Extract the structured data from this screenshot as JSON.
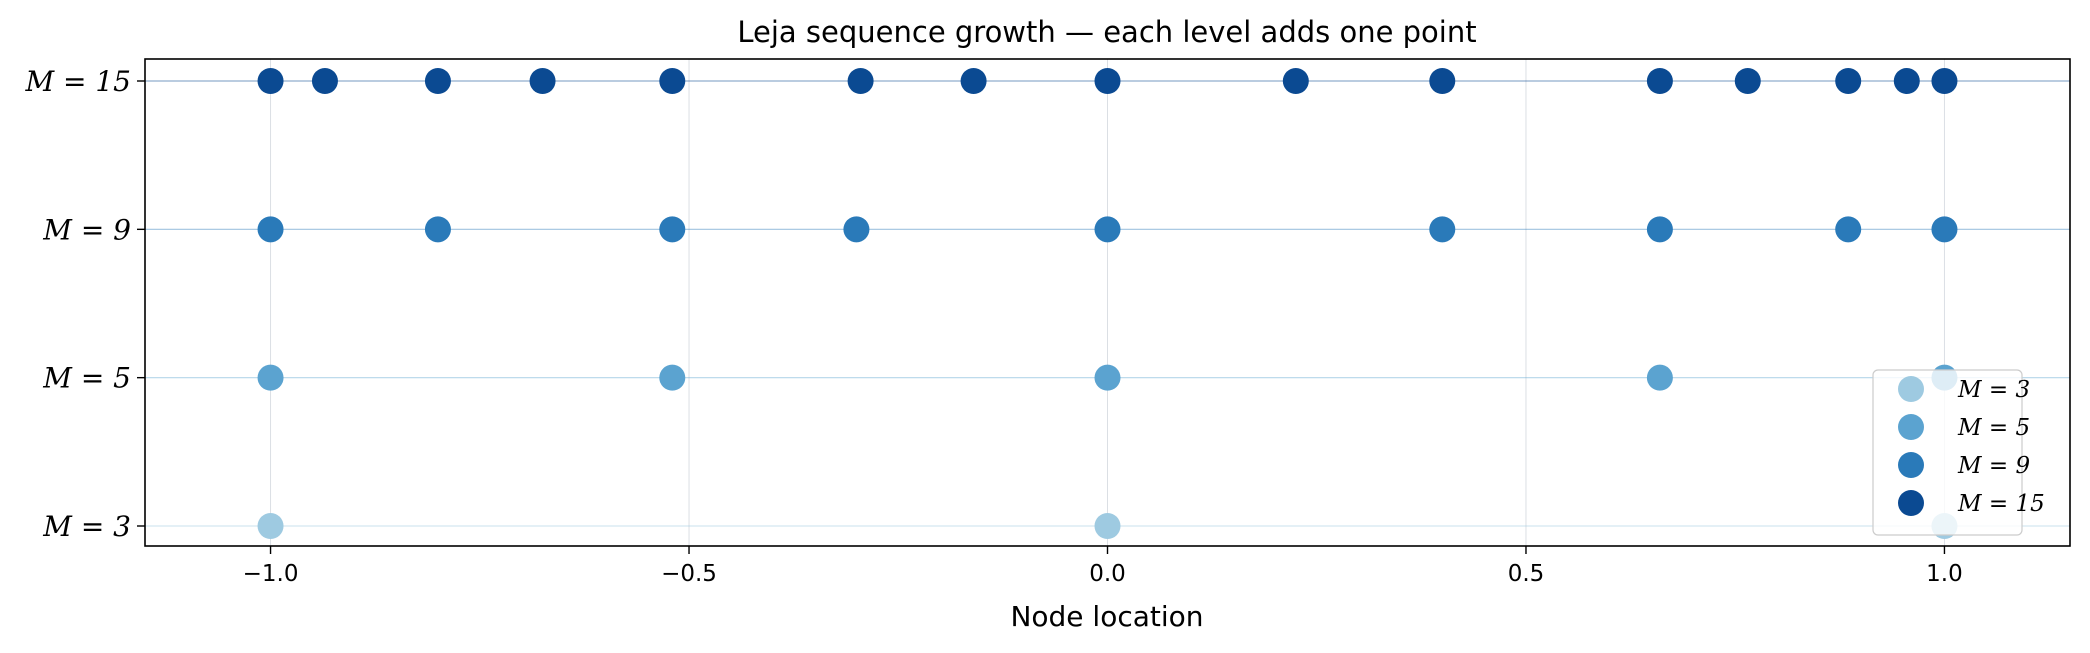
{
  "chart_data": {
    "type": "scatter",
    "title": "Leja sequence growth — each level adds one point",
    "xlabel": "Node location",
    "ylabel": "",
    "xlim": [
      -1.15,
      1.15
    ],
    "xticks": [
      -1.0,
      -0.5,
      0.0,
      0.5,
      1.0
    ],
    "xtick_labels": [
      "−1.0",
      "−0.5",
      "0.0",
      "0.5",
      "1.0"
    ],
    "grid": true,
    "legend_position": "lower-right",
    "series": [
      {
        "name": "M = 3",
        "label": "M = 3",
        "color": "#9ecae1",
        "x": [
          -1.0,
          0.0,
          1.0
        ]
      },
      {
        "name": "M = 5",
        "label": "M = 5",
        "color": "#5ba3d0",
        "x": [
          -1.0,
          -0.52,
          0.0,
          0.66,
          1.0
        ]
      },
      {
        "name": "M = 9",
        "label": "M = 9",
        "color": "#2a7ab9",
        "x": [
          -1.0,
          -0.8,
          -0.52,
          -0.3,
          0.0,
          0.4,
          0.66,
          0.885,
          1.0
        ]
      },
      {
        "name": "M = 15",
        "label": "M = 15",
        "color": "#0b4a92",
        "x": [
          -1.0,
          -0.935,
          -0.8,
          -0.675,
          -0.52,
          -0.295,
          -0.16,
          0.0,
          0.225,
          0.4,
          0.66,
          0.765,
          0.885,
          0.955,
          1.0
        ]
      }
    ]
  }
}
